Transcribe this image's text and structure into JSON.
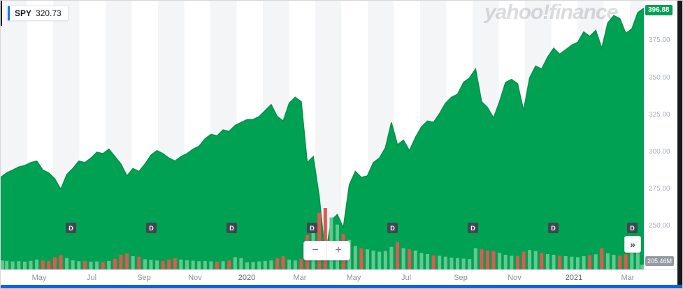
{
  "widget": {
    "ticker": {
      "symbol": "SPY",
      "price": "320.73"
    },
    "watermark": "yahoo!finance",
    "current_price_badge": "396.88",
    "volume_badge": "205.46M",
    "zoom": {
      "minus": "−",
      "plus": "+"
    },
    "expand": "»",
    "dividend_label": "D"
  },
  "colors": {
    "area_green": "#00a152",
    "line_green": "#009149",
    "vol_green": "#62c98e",
    "vol_red": "#e2574f",
    "badge_green": "#00a152",
    "accent_blue": "#1d6fff",
    "bottom_bar_blue": "#0d64e8",
    "marker_dark": "#3e4753"
  },
  "chart_data": {
    "type": "area",
    "symbol": "SPY",
    "interval": "weekly",
    "title": "SPY price with volume, dividends marked D",
    "x_range": [
      "Mar 2019",
      "Mar 2021"
    ],
    "ylim": [
      221,
      402
    ],
    "yticks": [
      375,
      350,
      325,
      300,
      275,
      250
    ],
    "last_price": 396.88,
    "last_volume_label": "205.46M",
    "grid": "vertical-month-stripes",
    "legend_position": "none",
    "prices": [
      283,
      286,
      288,
      290,
      291,
      293,
      294,
      288,
      286,
      282,
      275,
      285,
      289,
      294,
      293,
      296,
      300,
      299,
      302,
      297,
      292,
      284,
      289,
      287,
      292,
      298,
      301,
      299,
      296,
      294,
      297,
      299,
      302,
      304,
      309,
      312,
      311,
      315,
      314,
      318,
      320,
      322,
      322,
      324,
      328,
      332,
      324,
      321,
      333,
      337,
      334,
      293,
      297,
      270,
      230,
      254,
      258,
      249,
      278,
      287,
      283,
      284,
      293,
      296,
      303,
      320,
      305,
      308,
      301,
      310,
      317,
      321,
      320,
      326,
      333,
      337,
      339,
      347,
      350,
      356,
      334,
      330,
      323,
      334,
      347,
      349,
      346,
      328,
      350,
      358,
      356,
      364,
      370,
      366,
      369,
      372,
      374,
      381,
      378,
      382,
      370,
      387,
      392,
      390,
      380,
      383,
      394,
      396.88
    ],
    "volumes_millions": [
      380,
      360,
      340,
      350,
      330,
      360,
      420,
      380,
      360,
      520,
      610,
      480,
      390,
      350,
      360,
      330,
      340,
      320,
      360,
      450,
      620,
      680,
      560,
      540,
      430,
      410,
      380,
      360,
      420,
      480,
      420,
      390,
      370,
      350,
      360,
      340,
      330,
      350,
      380,
      520,
      480,
      300,
      320,
      340,
      360,
      380,
      480,
      560,
      420,
      380,
      440,
      1450,
      1900,
      2400,
      2600,
      2200,
      1900,
      1500,
      1250,
      1000,
      900,
      850,
      800,
      750,
      780,
      950,
      1150,
      900,
      850,
      800,
      700,
      650,
      600,
      580,
      540,
      500,
      480,
      460,
      440,
      900,
      850,
      800,
      780,
      700,
      620,
      580,
      560,
      750,
      820,
      780,
      700,
      650,
      620,
      580,
      560,
      540,
      520,
      560,
      600,
      640,
      900,
      680,
      620,
      580,
      640,
      780,
      720,
      205
    ],
    "vol_max": 2600,
    "x_labels": [
      {
        "label": "May",
        "pos": 0.06
      },
      {
        "label": "Jul",
        "pos": 0.141
      },
      {
        "label": "Sep",
        "pos": 0.223
      },
      {
        "label": "Nov",
        "pos": 0.302
      },
      {
        "label": "2020",
        "pos": 0.383,
        "year": true
      },
      {
        "label": "Mar",
        "pos": 0.465
      },
      {
        "label": "May",
        "pos": 0.549
      },
      {
        "label": "Jul",
        "pos": 0.63
      },
      {
        "label": "Sep",
        "pos": 0.715
      },
      {
        "label": "Nov",
        "pos": 0.799
      },
      {
        "label": "2021",
        "pos": 0.891,
        "year": true
      },
      {
        "label": "Mar",
        "pos": 0.975
      }
    ],
    "dividends": [
      {
        "label": "D",
        "pos": 0.109
      },
      {
        "label": "D",
        "pos": 0.234
      },
      {
        "label": "D",
        "pos": 0.359
      },
      {
        "label": "D",
        "pos": 0.484
      },
      {
        "label": "D",
        "pos": 0.609
      },
      {
        "label": "D",
        "pos": 0.734
      },
      {
        "label": "D",
        "pos": 0.859
      },
      {
        "label": "D",
        "pos": 0.982
      }
    ]
  }
}
